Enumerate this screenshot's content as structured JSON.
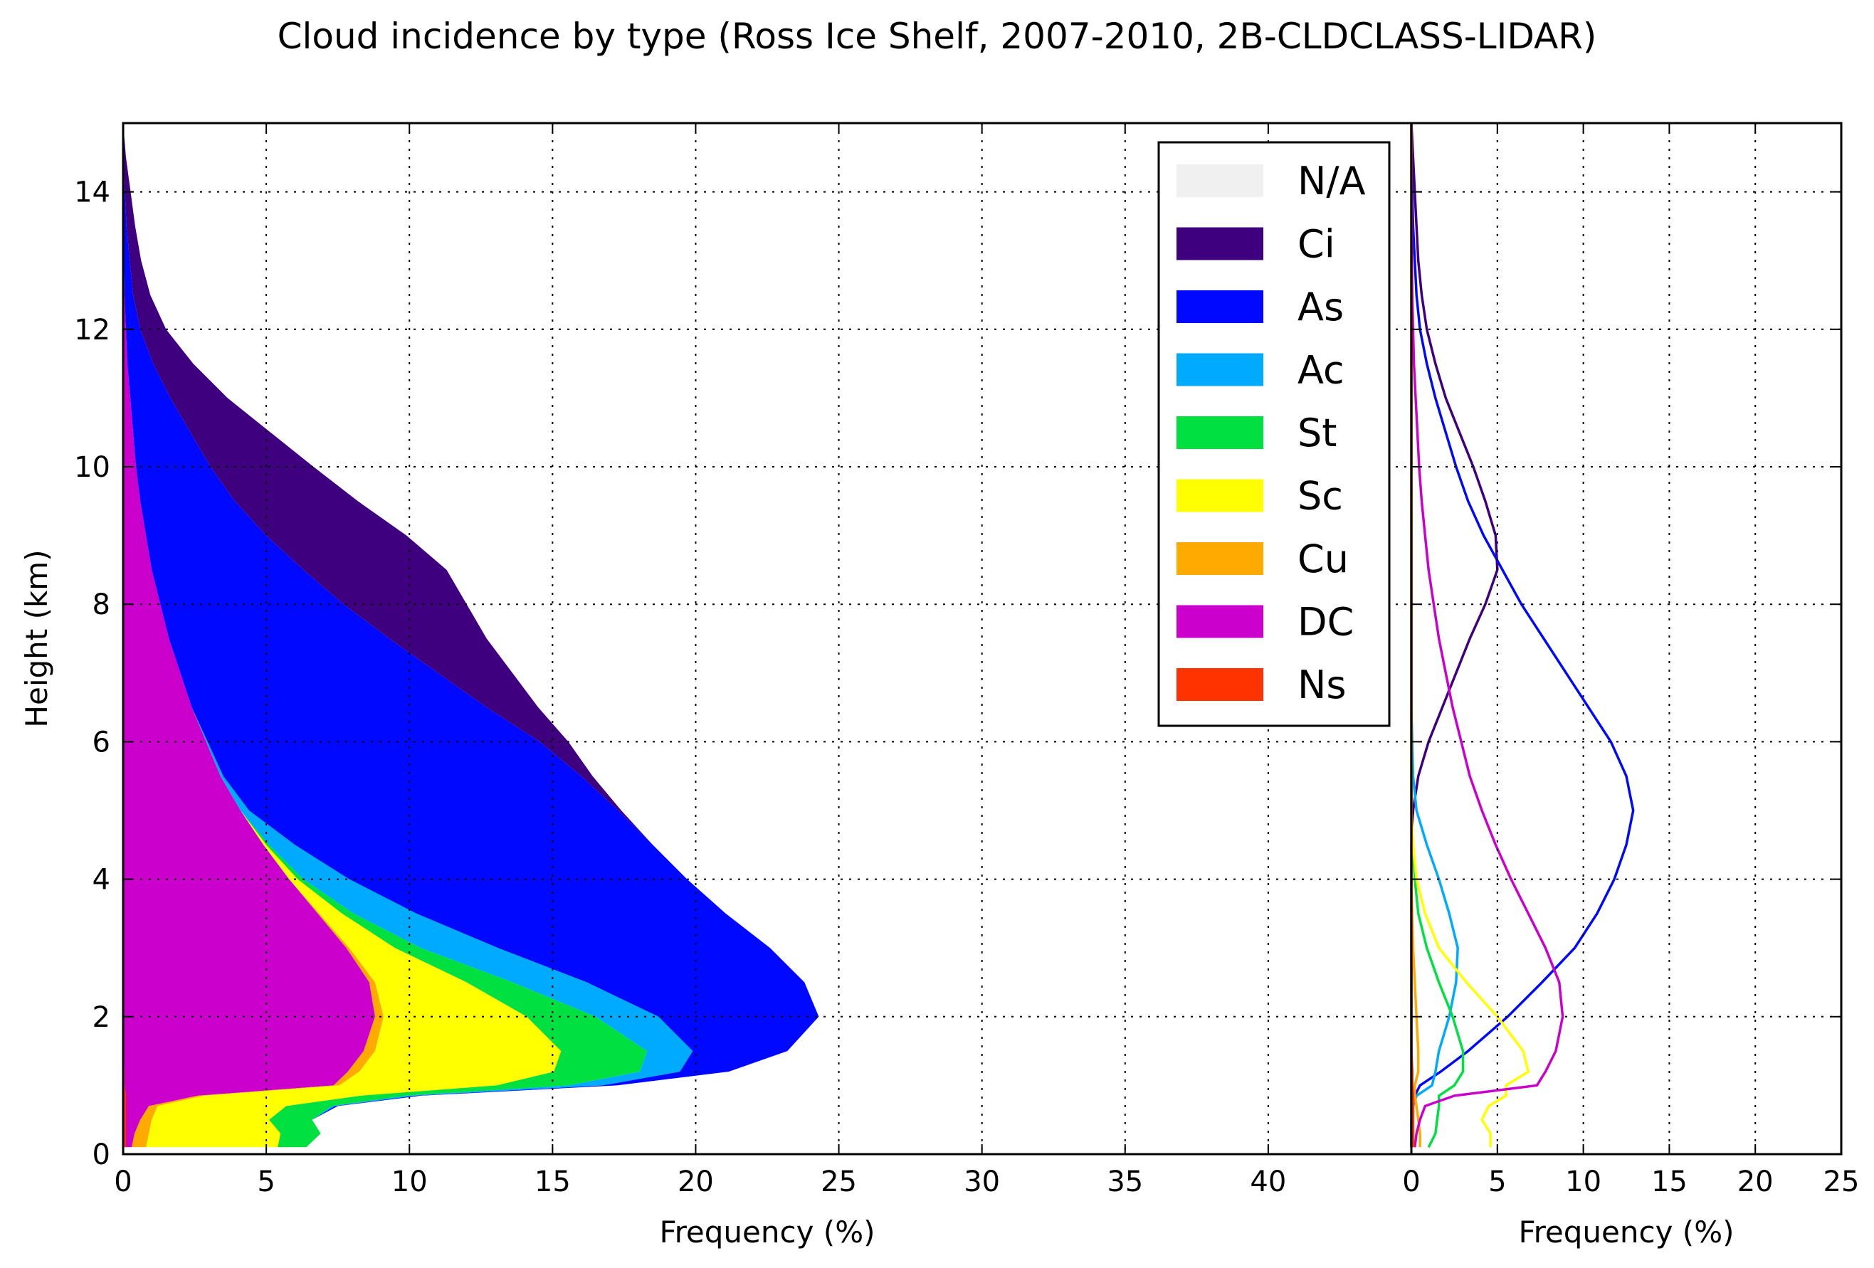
{
  "chart_title": "Cloud incidence by type (Ross Ice Shelf, 2007-2010, 2B-CLDCLASS-LIDAR)",
  "colors": {
    "N/A": "#f0f0f0",
    "Ci": "#3f0080",
    "As": "#0008ff",
    "Ac": "#00aaff",
    "St": "#00e040",
    "Sc": "#ffff00",
    "Cu": "#ffaa00",
    "DC": "#cc00cc",
    "Ns": "#ff3300"
  },
  "chart_data": [
    {
      "type": "area",
      "subtype": "stacked",
      "xlabel": "Frequency (%)",
      "ylabel": "Height (km)",
      "xlim": [
        0,
        45
      ],
      "ylim": [
        0,
        15
      ],
      "xticks": [
        0,
        5,
        10,
        15,
        20,
        25,
        30,
        35,
        40
      ],
      "yticks": [
        0,
        2,
        4,
        6,
        8,
        10,
        12,
        14
      ],
      "grid": true,
      "legend": {
        "placement": "upper-right",
        "entries": [
          "N/A",
          "Ci",
          "As",
          "Ac",
          "St",
          "Sc",
          "Cu",
          "DC",
          "Ns"
        ]
      },
      "stack_order": [
        "Ns",
        "DC",
        "Cu",
        "Sc",
        "St",
        "Ac",
        "As",
        "Ci",
        "N/A"
      ],
      "height_km": [
        0.1,
        0.3,
        0.5,
        0.7,
        0.85,
        1.0,
        1.2,
        1.5,
        2.0,
        2.5,
        3.0,
        3.5,
        4.0,
        4.5,
        5.0,
        5.5,
        6.0,
        6.5,
        7.0,
        7.5,
        8.0,
        8.5,
        9.0,
        9.5,
        10.0,
        10.5,
        11.0,
        11.5,
        12.0,
        12.5,
        13.0,
        13.5,
        14.0,
        14.5,
        15.0
      ],
      "series": [
        {
          "name": "Ns",
          "values": [
            0.1,
            0.1,
            0.1,
            0.1,
            0.1,
            0.05,
            0.05,
            0,
            0,
            0,
            0,
            0,
            0,
            0,
            0,
            0,
            0,
            0,
            0,
            0,
            0,
            0,
            0,
            0,
            0,
            0,
            0,
            0,
            0,
            0,
            0,
            0,
            0,
            0,
            0
          ]
        },
        {
          "name": "DC",
          "values": [
            0.2,
            0.3,
            0.5,
            0.8,
            2.5,
            7.3,
            7.8,
            8.4,
            8.8,
            8.6,
            7.8,
            6.8,
            5.8,
            4.9,
            4.1,
            3.4,
            2.9,
            2.4,
            2.0,
            1.6,
            1.3,
            1.0,
            0.8,
            0.6,
            0.45,
            0.35,
            0.25,
            0.15,
            0.1,
            0.05,
            0.03,
            0.02,
            0.01,
            0,
            0
          ]
        },
        {
          "name": "Cu",
          "values": [
            0.5,
            0.5,
            0.4,
            0.3,
            0.2,
            0.2,
            0.4,
            0.4,
            0.3,
            0.2,
            0.1,
            0.05,
            0,
            0,
            0,
            0,
            0,
            0,
            0,
            0,
            0,
            0,
            0,
            0,
            0,
            0,
            0,
            0,
            0,
            0,
            0,
            0,
            0,
            0,
            0
          ]
        },
        {
          "name": "Sc",
          "values": [
            4.6,
            4.6,
            4.1,
            4.5,
            5.5,
            5.5,
            6.8,
            6.5,
            5.0,
            3.2,
            1.6,
            0.8,
            0.3,
            0.1,
            0,
            0,
            0,
            0,
            0,
            0,
            0,
            0,
            0,
            0,
            0,
            0,
            0,
            0,
            0,
            0,
            0,
            0,
            0,
            0,
            0
          ]
        },
        {
          "name": "St",
          "values": [
            1.0,
            1.4,
            1.5,
            1.6,
            1.6,
            2.5,
            3.0,
            3.0,
            2.4,
            1.6,
            0.9,
            0.4,
            0.2,
            0.1,
            0,
            0,
            0,
            0,
            0,
            0,
            0,
            0,
            0,
            0,
            0,
            0,
            0,
            0,
            0,
            0,
            0,
            0,
            0,
            0,
            0
          ]
        },
        {
          "name": "Ac",
          "values": [
            0,
            0,
            0,
            0.1,
            0.3,
            1.2,
            1.4,
            1.6,
            2.2,
            2.6,
            2.7,
            2.2,
            1.6,
            0.9,
            0.3,
            0.1,
            0.05,
            0,
            0,
            0,
            0,
            0,
            0,
            0,
            0,
            0,
            0,
            0,
            0,
            0,
            0,
            0,
            0,
            0,
            0
          ]
        },
        {
          "name": "As",
          "values": [
            0,
            0,
            0,
            0.1,
            0.2,
            0.5,
            1.7,
            3.3,
            5.6,
            7.6,
            9.5,
            10.8,
            11.8,
            12.5,
            12.9,
            12.5,
            11.6,
            10.3,
            9.0,
            7.7,
            6.4,
            5.3,
            4.2,
            3.3,
            2.6,
            2.0,
            1.4,
            0.9,
            0.5,
            0.3,
            0.2,
            0.1,
            0.05,
            0,
            0
          ]
        },
        {
          "name": "Ci",
          "values": [
            0,
            0,
            0,
            0,
            0,
            0,
            0,
            0,
            0,
            0,
            0,
            0,
            0,
            0,
            0.1,
            0.4,
            1.0,
            1.8,
            2.6,
            3.4,
            4.3,
            5.0,
            4.9,
            4.3,
            3.6,
            2.8,
            2.0,
            1.4,
            0.9,
            0.6,
            0.4,
            0.3,
            0.2,
            0.1,
            0
          ]
        }
      ]
    },
    {
      "type": "line",
      "xlabel": "Frequency (%)",
      "xlim": [
        0,
        25
      ],
      "ylim": [
        0,
        15
      ],
      "xticks": [
        0,
        5,
        10,
        15,
        20,
        25
      ],
      "grid": true,
      "height_km": [
        0.1,
        0.3,
        0.5,
        0.7,
        0.85,
        1.0,
        1.2,
        1.5,
        2.0,
        2.5,
        3.0,
        3.5,
        4.0,
        4.5,
        5.0,
        5.5,
        6.0,
        6.5,
        7.0,
        7.5,
        8.0,
        8.5,
        9.0,
        9.5,
        10.0,
        10.5,
        11.0,
        11.5,
        12.0,
        12.5,
        13.0,
        13.5,
        14.0,
        14.5,
        15.0
      ],
      "series": [
        {
          "name": "Ci",
          "values": [
            0,
            0,
            0,
            0,
            0,
            0,
            0,
            0,
            0,
            0,
            0,
            0,
            0,
            0,
            0.1,
            0.4,
            1.0,
            1.8,
            2.6,
            3.4,
            4.3,
            5.0,
            4.9,
            4.3,
            3.6,
            2.8,
            2.0,
            1.4,
            0.9,
            0.6,
            0.4,
            0.3,
            0.2,
            0.1,
            0
          ]
        },
        {
          "name": "As",
          "values": [
            0,
            0,
            0,
            0.1,
            0.2,
            0.5,
            1.7,
            3.3,
            5.6,
            7.6,
            9.5,
            10.8,
            11.8,
            12.5,
            12.9,
            12.5,
            11.6,
            10.3,
            9.0,
            7.7,
            6.4,
            5.3,
            4.2,
            3.3,
            2.6,
            2.0,
            1.4,
            0.9,
            0.5,
            0.3,
            0.2,
            0.1,
            0.05,
            0,
            0
          ]
        },
        {
          "name": "Ac",
          "values": [
            0,
            0,
            0,
            0.1,
            0.3,
            1.2,
            1.4,
            1.6,
            2.2,
            2.6,
            2.7,
            2.2,
            1.6,
            0.9,
            0.3,
            0.1,
            0.05,
            0,
            0,
            0,
            0,
            0,
            0,
            0,
            0,
            0,
            0,
            0,
            0,
            0,
            0,
            0,
            0,
            0,
            0
          ]
        },
        {
          "name": "St",
          "values": [
            1.0,
            1.4,
            1.5,
            1.6,
            1.6,
            2.5,
            3.0,
            3.0,
            2.4,
            1.6,
            0.9,
            0.4,
            0.2,
            0.1,
            0,
            0,
            0,
            0,
            0,
            0,
            0,
            0,
            0,
            0,
            0,
            0,
            0,
            0,
            0,
            0,
            0,
            0,
            0,
            0,
            0
          ]
        },
        {
          "name": "Sc",
          "values": [
            4.6,
            4.6,
            4.1,
            4.5,
            5.5,
            5.5,
            6.8,
            6.5,
            5.0,
            3.2,
            1.6,
            0.8,
            0.3,
            0.1,
            0,
            0,
            0,
            0,
            0,
            0,
            0,
            0,
            0,
            0,
            0,
            0,
            0,
            0,
            0,
            0,
            0,
            0,
            0,
            0,
            0
          ]
        },
        {
          "name": "Cu",
          "values": [
            0.5,
            0.5,
            0.4,
            0.3,
            0.2,
            0.2,
            0.4,
            0.4,
            0.3,
            0.2,
            0.1,
            0.05,
            0,
            0,
            0,
            0,
            0,
            0,
            0,
            0,
            0,
            0,
            0,
            0,
            0,
            0,
            0,
            0,
            0,
            0,
            0,
            0,
            0,
            0,
            0
          ]
        },
        {
          "name": "DC",
          "values": [
            0.2,
            0.3,
            0.5,
            0.8,
            2.5,
            7.3,
            7.8,
            8.4,
            8.8,
            8.6,
            7.8,
            6.8,
            5.8,
            4.9,
            4.1,
            3.4,
            2.9,
            2.4,
            2.0,
            1.6,
            1.3,
            1.0,
            0.8,
            0.6,
            0.45,
            0.35,
            0.25,
            0.15,
            0.1,
            0.05,
            0.03,
            0.02,
            0.01,
            0,
            0
          ]
        },
        {
          "name": "Ns",
          "values": [
            0.1,
            0.1,
            0.1,
            0.1,
            0.1,
            0.05,
            0.05,
            0,
            0,
            0,
            0,
            0,
            0,
            0,
            0,
            0,
            0,
            0,
            0,
            0,
            0,
            0,
            0,
            0,
            0,
            0,
            0,
            0,
            0,
            0,
            0,
            0,
            0,
            0,
            0
          ]
        }
      ]
    }
  ]
}
